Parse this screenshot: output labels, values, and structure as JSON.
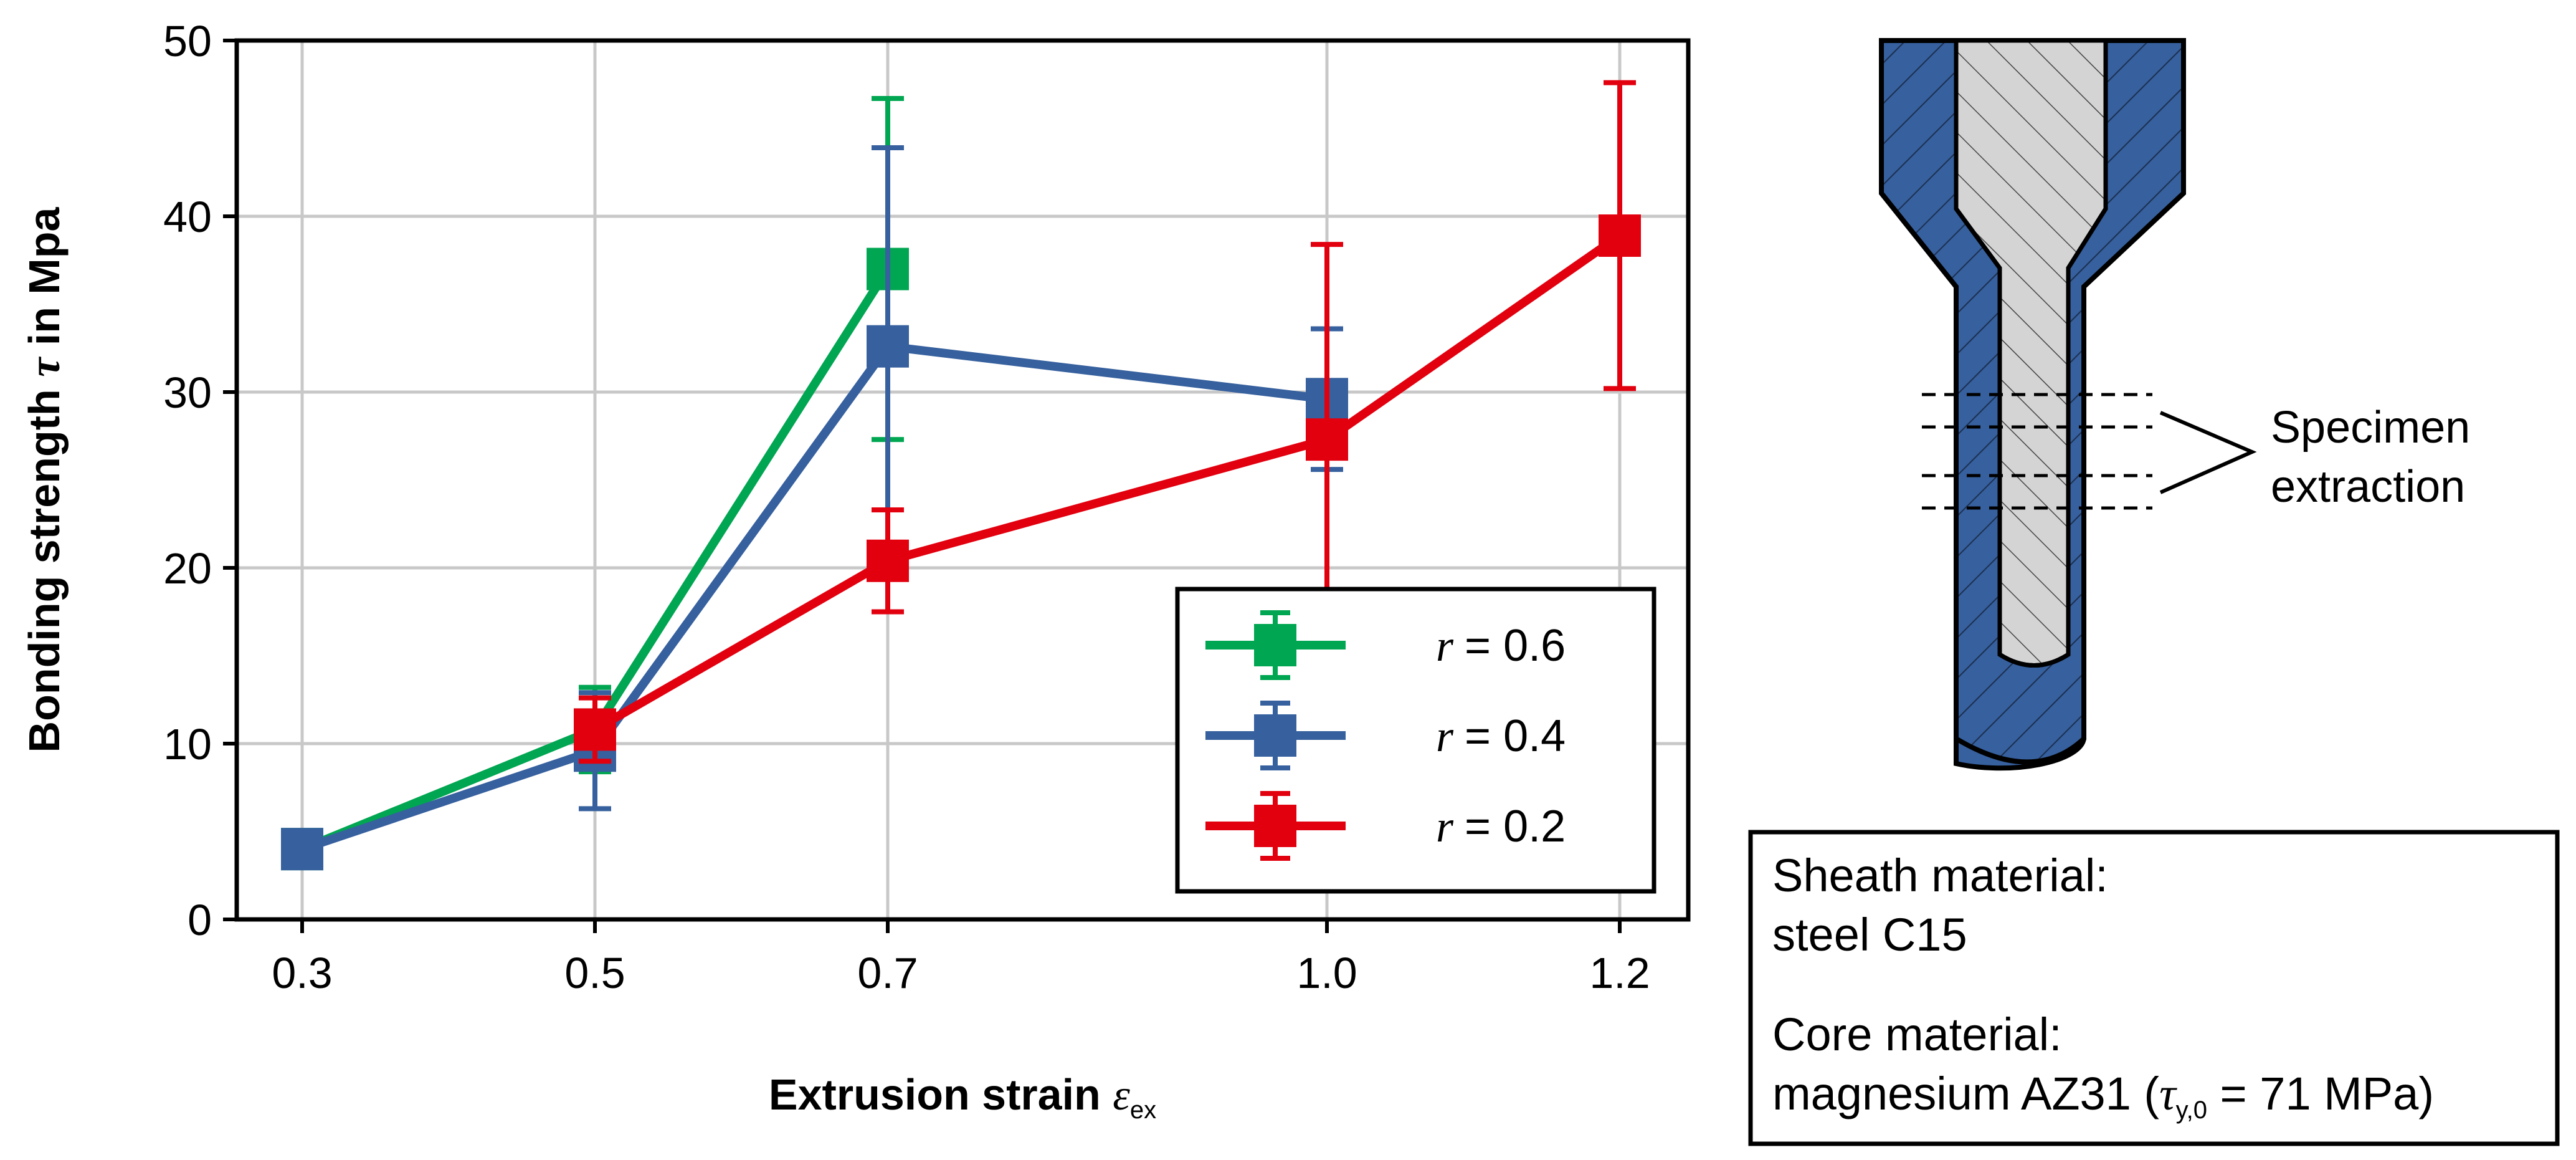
{
  "chart_data": {
    "type": "line",
    "xlabel": "Extrusion strain",
    "xlabel_symbol": "ε",
    "xlabel_sub": "ex",
    "ylabel": "Bonding strength",
    "ylabel_symbol": "τ",
    "ylabel_unit": "in Mpa",
    "ylim": [
      0,
      50
    ],
    "yticks": [
      0,
      10,
      20,
      30,
      40,
      50
    ],
    "x": [
      0.3,
      0.5,
      0.7,
      1.0,
      1.2
    ],
    "xtick_labels": [
      "0.3",
      "0.5",
      "0.7",
      "1.0",
      "1.2"
    ],
    "grid": true,
    "legend_position": "bottom-right",
    "series": [
      {
        "name": "r = 0.6",
        "symbol": "r",
        "value_label": "= 0.6",
        "color": "#00a651",
        "x": [
          0.3,
          0.5,
          0.7
        ],
        "y": [
          4.0,
          10.8,
          37.0
        ],
        "err": [
          1.0,
          2.4,
          9.7
        ]
      },
      {
        "name": "r = 0.4",
        "symbol": "r",
        "value_label": "= 0.4",
        "color": "#36609e",
        "x": [
          0.3,
          0.5,
          0.7,
          1.0
        ],
        "y": [
          4.0,
          9.6,
          32.6,
          29.6
        ],
        "err": [
          1.0,
          3.3,
          11.3,
          4.0
        ]
      },
      {
        "name": "r = 0.2",
        "symbol": "r",
        "value_label": "= 0.2",
        "color": "#e2000f",
        "x": [
          0.5,
          0.7,
          1.0,
          1.2
        ],
        "y": [
          10.8,
          20.4,
          27.3,
          38.9
        ],
        "err": [
          1.8,
          2.9,
          11.1,
          8.7
        ]
      }
    ]
  },
  "diagram": {
    "annotation_line1": "Specimen",
    "annotation_line2": "extraction",
    "sheath_color": "#36609e",
    "core_color": "#d4d4d4"
  },
  "info_box": {
    "line1": "Sheath material:",
    "line2": "steel C15",
    "line3": "Core material:",
    "line4_prefix": "magnesium AZ31 (",
    "line4_symbol": "τ",
    "line4_sub": "y,0",
    "line4_suffix": " = 71 MPa)"
  }
}
